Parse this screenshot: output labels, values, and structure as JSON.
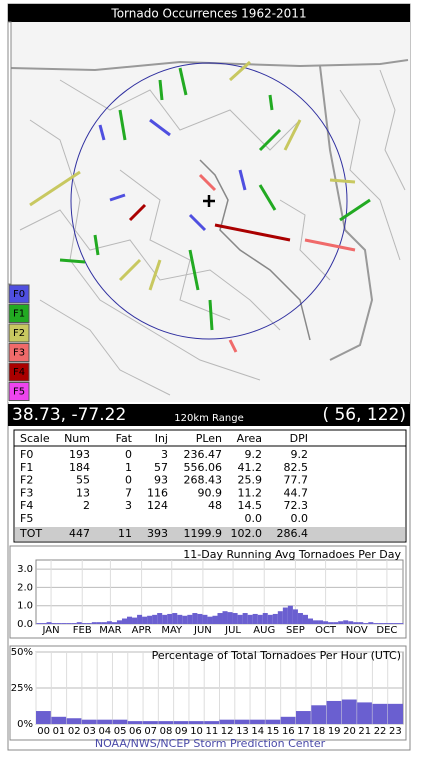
{
  "header": {
    "title": "Tornado Occurrences 1962-2011"
  },
  "legend": [
    {
      "label": "F0",
      "color": "#4f4fe0"
    },
    {
      "label": "F1",
      "color": "#22aa22"
    },
    {
      "label": "F2",
      "color": "#c8c860"
    },
    {
      "label": "F3",
      "color": "#f06a6a"
    },
    {
      "label": "F4",
      "color": "#aa0000"
    },
    {
      "label": "F5",
      "color": "#ee44ee"
    }
  ],
  "status": {
    "coords": "38.73, -77.22",
    "range": "120km Range",
    "grid": "( 56, 122)"
  },
  "table": {
    "header": [
      "Scale",
      "Num",
      "Fat",
      "Inj",
      "PLen",
      "Area",
      "DPI"
    ],
    "rows": [
      [
        "F0",
        "193",
        "0",
        "3",
        "236.47",
        "9.2",
        "9.2"
      ],
      [
        "F1",
        "184",
        "1",
        "57",
        "556.06",
        "41.2",
        "82.5"
      ],
      [
        "F2",
        "55",
        "0",
        "93",
        "268.43",
        "25.9",
        "77.7"
      ],
      [
        "F3",
        "13",
        "7",
        "116",
        "90.9",
        "11.2",
        "44.7"
      ],
      [
        "F4",
        "2",
        "3",
        "124",
        "48",
        "14.5",
        "72.3"
      ],
      [
        "F5",
        null,
        null,
        null,
        null,
        "0.0",
        "0.0"
      ],
      [
        "TOT",
        "447",
        "11",
        "393",
        "1199.9",
        "102.0",
        "286.4"
      ]
    ]
  },
  "chart_data": [
    {
      "type": "bar",
      "title": "11-Day Running Avg Tornadoes Per Day",
      "color": "#6a5fd0",
      "x": [
        3,
        8,
        13,
        18,
        23,
        28,
        33,
        38,
        43,
        48,
        53,
        58,
        63,
        68,
        73,
        78,
        83,
        88,
        93,
        98,
        103,
        108,
        113,
        118,
        123,
        128,
        133,
        138,
        143,
        148,
        153,
        158,
        163,
        168,
        173,
        178,
        183,
        188,
        193,
        198,
        203,
        208,
        213,
        218,
        223,
        228,
        233,
        238,
        243,
        248,
        253,
        258,
        263,
        268,
        273,
        278,
        283,
        288,
        293,
        298,
        303,
        308,
        313,
        318,
        323,
        328,
        333,
        338,
        343,
        348,
        353,
        358,
        363
      ],
      "values": [
        0.05,
        0.05,
        0.1,
        0.05,
        0.05,
        0.05,
        0.05,
        0.05,
        0.1,
        0.05,
        0.05,
        0.1,
        0.1,
        0.1,
        0.15,
        0.1,
        0.2,
        0.3,
        0.4,
        0.35,
        0.5,
        0.4,
        0.45,
        0.5,
        0.6,
        0.5,
        0.55,
        0.6,
        0.5,
        0.45,
        0.5,
        0.6,
        0.55,
        0.5,
        0.4,
        0.45,
        0.6,
        0.7,
        0.65,
        0.6,
        0.5,
        0.6,
        0.5,
        0.55,
        0.5,
        0.6,
        0.5,
        0.55,
        0.7,
        0.9,
        1.0,
        0.8,
        0.6,
        0.5,
        0.3,
        0.2,
        0.2,
        0.15,
        0.1,
        0.1,
        0.15,
        0.2,
        0.15,
        0.1,
        0.1,
        0.05,
        0.1,
        0.05,
        0.05,
        0.05,
        0.05,
        0.05,
        0.05
      ],
      "xlim": [
        0,
        365
      ],
      "xticks": [
        {
          "value": 15,
          "label": "JAN"
        },
        {
          "value": 46,
          "label": "FEB"
        },
        {
          "value": 74,
          "label": "MAR"
        },
        {
          "value": 105,
          "label": "APR"
        },
        {
          "value": 135,
          "label": "MAY"
        },
        {
          "value": 166,
          "label": "JUN"
        },
        {
          "value": 196,
          "label": "JUL"
        },
        {
          "value": 227,
          "label": "AUG"
        },
        {
          "value": 258,
          "label": "SEP"
        },
        {
          "value": 288,
          "label": "OCT"
        },
        {
          "value": 319,
          "label": "NOV"
        },
        {
          "value": 349,
          "label": "DEC"
        }
      ],
      "ylim": [
        0,
        3.5
      ],
      "yticks": [
        {
          "value": 0,
          "label": "0.0"
        },
        {
          "value": 1,
          "label": "1.0"
        },
        {
          "value": 2,
          "label": "2.0"
        },
        {
          "value": 3,
          "label": "3.0"
        }
      ],
      "grid": true
    },
    {
      "type": "bar",
      "title": "Percentage of Total Tornadoes Per Hour (UTC)",
      "color": "#6a5fd0",
      "categories": [
        "00",
        "01",
        "02",
        "03",
        "04",
        "05",
        "06",
        "07",
        "08",
        "09",
        "10",
        "11",
        "12",
        "13",
        "14",
        "15",
        "16",
        "17",
        "18",
        "19",
        "20",
        "21",
        "22",
        "23"
      ],
      "values": [
        9,
        5,
        4,
        3,
        3,
        3,
        2,
        2,
        2,
        2,
        2,
        2,
        3,
        3,
        3,
        3,
        5,
        9,
        13,
        16,
        17,
        15,
        14,
        14
      ],
      "ylim": [
        0,
        50
      ],
      "yticks": [
        {
          "value": 0,
          "label": "0%"
        },
        {
          "value": 25,
          "label": "25%"
        },
        {
          "value": 50,
          "label": "50%"
        }
      ],
      "grid": true
    }
  ],
  "footer": {
    "text": "NOAA/NWS/NCEP Storm Prediction Center"
  }
}
